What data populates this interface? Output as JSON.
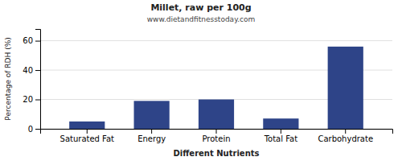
{
  "chart_data": {
    "type": "bar",
    "title": "Millet, raw per 100g",
    "subtitle": "www.dietandfitnesstoday.com",
    "xlabel": "Different Nutrients",
    "ylabel": "Percentage of RDH (%)",
    "categories": [
      "Saturated Fat",
      "Energy",
      "Protein",
      "Total Fat",
      "Carbohydrate"
    ],
    "values": [
      5,
      19,
      20,
      7,
      56
    ],
    "color": "#2e4488",
    "ylim": [
      0,
      68
    ],
    "yticks": [
      0,
      20,
      40,
      60
    ],
    "grid": true
  }
}
